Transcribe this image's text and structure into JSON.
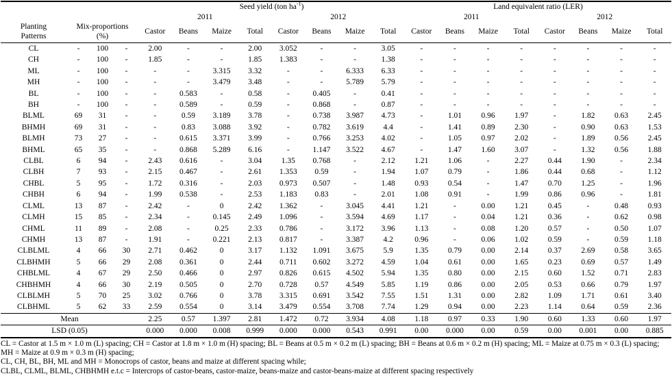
{
  "table": {
    "seed_yield_header": {
      "pre": "Seed yield (ton ha",
      "sup": "-1",
      "post": ")"
    },
    "ler_header": "Land equivalent ratio (LER)",
    "years": [
      "2011",
      "2012",
      "2011",
      "2012"
    ],
    "pattern_header": "Planting\nPatterns",
    "mix_header": "Mix-proportions\n(%)",
    "crop_headers": [
      "Castor",
      "Beans",
      "Maize",
      "Total"
    ],
    "rows": [
      {
        "pattern": "CL",
        "mix": [
          "-",
          "100",
          "-"
        ],
        "values": [
          "2.00",
          "-",
          "-",
          "2.00",
          "3.052",
          "-",
          "-",
          "3.05",
          "-",
          "-",
          "-",
          "-",
          "-",
          "-",
          "-",
          "-"
        ]
      },
      {
        "pattern": "CH",
        "mix": [
          "-",
          "100",
          "-"
        ],
        "values": [
          "1.85",
          "-",
          "-",
          "1.85",
          "1.383",
          "-",
          "-",
          "1.38",
          "-",
          "-",
          "-",
          "-",
          "-",
          "-",
          "-",
          "-"
        ]
      },
      {
        "pattern": "ML",
        "mix": [
          "-",
          "100",
          "-"
        ],
        "values": [
          "-",
          "-",
          "3.315",
          "3.32",
          "-",
          "-",
          "6.333",
          "6.33",
          "-",
          "-",
          "-",
          "-",
          "-",
          "-",
          "-",
          "-"
        ]
      },
      {
        "pattern": "MH",
        "mix": [
          "-",
          "100",
          "-"
        ],
        "values": [
          "-",
          "-",
          "3.479",
          "3.48",
          "-",
          "-",
          "5.789",
          "5.79",
          "-",
          "-",
          "-",
          "-",
          "-",
          "-",
          "-",
          "-"
        ]
      },
      {
        "pattern": "BL",
        "mix": [
          "-",
          "100",
          "-"
        ],
        "values": [
          "-",
          "0.583",
          "-",
          "0.58",
          "-",
          "0.405",
          "-",
          "0.41",
          "-",
          "-",
          "-",
          "-",
          "-",
          "-",
          "-",
          "-"
        ]
      },
      {
        "pattern": "BH",
        "mix": [
          "-",
          "100",
          "-"
        ],
        "values": [
          "-",
          "0.589",
          "-",
          "0.59",
          "-",
          "0.868",
          "-",
          "0.87",
          "-",
          "-",
          "-",
          "-",
          "-",
          "-",
          "-",
          "-"
        ]
      },
      {
        "pattern": "BLML",
        "mix": [
          "69",
          "31",
          "-"
        ],
        "values": [
          "-",
          "0.59",
          "3.189",
          "3.78",
          "-",
          "0.738",
          "3.987",
          "4.73",
          "-",
          "1.01",
          "0.96",
          "1.97",
          "-",
          "1.82",
          "0.63",
          "2.45"
        ]
      },
      {
        "pattern": "BHMH",
        "mix": [
          "69",
          "31",
          "-"
        ],
        "values": [
          "-",
          "0.83",
          "3.088",
          "3.92",
          "-",
          "0.782",
          "3.619",
          "4.4",
          "-",
          "1.41",
          "0.89",
          "2.30",
          "-",
          "0.90",
          "0.63",
          "1.53"
        ]
      },
      {
        "pattern": "BLMH",
        "mix": [
          "73",
          "27",
          "-"
        ],
        "values": [
          "-",
          "0.615",
          "3.371",
          "3.99",
          "-",
          "0.766",
          "3.253",
          "4.02",
          "-",
          "1.05",
          "0.97",
          "2.02",
          "-",
          "1.89",
          "0.56",
          "2.45"
        ]
      },
      {
        "pattern": "BHML",
        "mix": [
          "65",
          "35",
          "-"
        ],
        "values": [
          "-",
          "0.868",
          "5.289",
          "6.16",
          "-",
          "1.147",
          "3.522",
          "4.67",
          "-",
          "1.47",
          "1.60",
          "3.07",
          "-",
          "1.32",
          "0.56",
          "1.88"
        ]
      },
      {
        "pattern": "CLBL",
        "mix": [
          "6",
          "94",
          "-"
        ],
        "values": [
          "2.43",
          "0.616",
          "-",
          "3.04",
          "1.35",
          "0.768",
          "-",
          "2.12",
          "1.21",
          "1.06",
          "-",
          "2.27",
          "0.44",
          "1.90",
          "-",
          "2.34"
        ]
      },
      {
        "pattern": "CLBH",
        "mix": [
          "7",
          "93",
          "-"
        ],
        "values": [
          "2.15",
          "0.467",
          "-",
          "2.61",
          "1.353",
          "0.59",
          "-",
          "1.94",
          "1.07",
          "0.79",
          "-",
          "1.86",
          "0.44",
          "0.68",
          "-",
          "1.12"
        ]
      },
      {
        "pattern": "CHBL",
        "mix": [
          "5",
          "95",
          "-"
        ],
        "values": [
          "1.72",
          "0.316",
          "-",
          "2.03",
          "0.973",
          "0.507",
          "-",
          "1.48",
          "0.93",
          "0.54",
          "-",
          "1.47",
          "0.70",
          "1.25",
          "-",
          "1.96"
        ]
      },
      {
        "pattern": "CHBH",
        "mix": [
          "6",
          "94",
          "-"
        ],
        "values": [
          "1.99",
          "0.538",
          "-",
          "2.53",
          "1.183",
          "0.83",
          "-",
          "2.01",
          "1.08",
          "0.91",
          "-",
          "1.99",
          "0.86",
          "0.96",
          "-",
          "1.81"
        ]
      },
      {
        "pattern": "CLML",
        "mix": [
          "13",
          "87",
          "-"
        ],
        "values": [
          "2.42",
          "-",
          "0",
          "2.42",
          "1.362",
          "-",
          "3.045",
          "4.41",
          "1.21",
          "-",
          "0.00",
          "1.21",
          "0.45",
          "-",
          "0.48",
          "0.93"
        ]
      },
      {
        "pattern": "CLMH",
        "mix": [
          "15",
          "85",
          "-"
        ],
        "values": [
          "2.34",
          "-",
          "0.145",
          "2.49",
          "1.096",
          "-",
          "3.594",
          "4.69",
          "1.17",
          "-",
          "0.04",
          "1.21",
          "0.36",
          "-",
          "0.62",
          "0.98"
        ]
      },
      {
        "pattern": "CHML",
        "mix": [
          "11",
          "89",
          "-"
        ],
        "values": [
          "2.08",
          "-",
          "0.25",
          "2.33",
          "0.786",
          "-",
          "3.172",
          "3.96",
          "1.13",
          "-",
          "0.08",
          "1.20",
          "0.57",
          "-",
          "0.50",
          "1.07"
        ]
      },
      {
        "pattern": "CHMH",
        "mix": [
          "13",
          "87",
          "-"
        ],
        "values": [
          "1.91",
          "-",
          "0.221",
          "2.13",
          "0.817",
          "-",
          "3.387",
          "4.2",
          "0.96",
          "-",
          "0.06",
          "1.02",
          "0.59",
          "-",
          "0.59",
          "1.18"
        ]
      },
      {
        "pattern": "CLBLML",
        "mix": [
          "4",
          "66",
          "30"
        ],
        "values": [
          "2.71",
          "0.462",
          "0",
          "3.17",
          "1.132",
          "1.091",
          "3.675",
          "5.9",
          "1.35",
          "0.79",
          "0.00",
          "2.14",
          "0.37",
          "2.69",
          "0.58",
          "3.65"
        ]
      },
      {
        "pattern": "CLBHMH",
        "mix": [
          "5",
          "66",
          "29"
        ],
        "values": [
          "2.08",
          "0.361",
          "0",
          "2.44",
          "0.711",
          "0.602",
          "3.272",
          "4.59",
          "1.04",
          "0.61",
          "0.00",
          "1.65",
          "0.23",
          "0.69",
          "0.57",
          "1.49"
        ]
      },
      {
        "pattern": "CHBLML",
        "mix": [
          "4",
          "67",
          "29"
        ],
        "values": [
          "2.50",
          "0.466",
          "0",
          "2.97",
          "0.826",
          "0.615",
          "4.502",
          "5.94",
          "1.35",
          "0.80",
          "0.00",
          "2.15",
          "0.60",
          "1.52",
          "0.71",
          "2.83"
        ]
      },
      {
        "pattern": "CHBHMH",
        "mix": [
          "4",
          "66",
          "30"
        ],
        "values": [
          "2.19",
          "0.505",
          "0",
          "2.70",
          "0.728",
          "0.57",
          "4.549",
          "5.85",
          "1.19",
          "0.86",
          "0.00",
          "2.05",
          "0.53",
          "0.66",
          "0.79",
          "1.97"
        ]
      },
      {
        "pattern": "CLBLMH",
        "mix": [
          "5",
          "70",
          "25"
        ],
        "values": [
          "3.02",
          "0.766",
          "0",
          "3.78",
          "3.315",
          "0.691",
          "3.542",
          "7.55",
          "1.51",
          "1.31",
          "0.00",
          "2.82",
          "1.09",
          "1.71",
          "0.61",
          "3.40"
        ]
      },
      {
        "pattern": "CLBHML",
        "mix": [
          "5",
          "62",
          "33"
        ],
        "values": [
          "2.59",
          "0.554",
          "0",
          "3.14",
          "3.479",
          "0.554",
          "3.708",
          "7.74",
          "1.29",
          "0.94",
          "0.00",
          "2.23",
          "1.14",
          "0.64",
          "0.59",
          "2.36"
        ]
      }
    ],
    "mean_row": {
      "label": "Mean",
      "values": [
        "2.25",
        "0.57",
        "1.397",
        "2.81",
        "1.472",
        "0.72",
        "3.934",
        "4.08",
        "1.18",
        "0.97",
        "0.33",
        "1.90",
        "0.60",
        "1.33",
        "0.60",
        "1.97"
      ]
    },
    "lsd_row": {
      "label": "LSD (0.05)",
      "values": [
        "0.000",
        "0.000",
        "0.008",
        "0.999",
        "0.000",
        "0.000",
        "0.543",
        "0.991",
        "0.00",
        "0.000",
        "0.00",
        "0.59",
        "0.00",
        "0.001",
        "0.00",
        "0.885"
      ]
    }
  },
  "footnotes": [
    "CL = Castor at 1.5 m × 1.0 m (L) spacing; CH = Castor at 1.8 m × 1.0 m (H) spacing; BL = Beans at 0.5 m × 0.2 m (L) spacing; BH = Beans at 0.6 m × 0.2 m (H) spacing; ML = Maize at 0.75 m × 0.3 (L) spacing; MH = Maize at 0.9 m × 0.3 m (H) spacing;",
    "CL, CH, BL, BH, ML and MH = Monocrops of castor, beans and maize at different spacing while;",
    "CLBL, CLML, BLML, CHBHMH e.t.c = Intercrops of castor-beans, castor-maize, beans-maize and castor-beans-maize at different spacing respectively"
  ]
}
